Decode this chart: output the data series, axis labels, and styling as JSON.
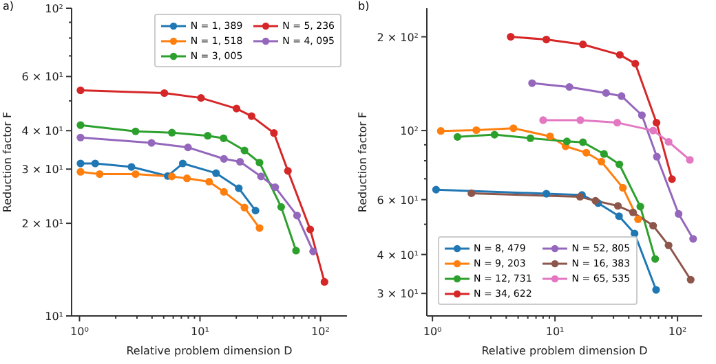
{
  "chart_data": [
    {
      "type": "line",
      "title": "a)",
      "xlabel": "Relative problem dimension D",
      "ylabel": "Reduction factor F",
      "log": "xy",
      "legend": "top right",
      "marker": "circle",
      "line_style": "solid",
      "xlim": [
        0.86,
        166
      ],
      "ylim": [
        10,
        100
      ],
      "xticks": [
        {
          "value": 1,
          "label": "10⁰"
        },
        {
          "value": 2,
          "label": null
        },
        {
          "value": 3,
          "label": null
        },
        {
          "value": 4,
          "label": null
        },
        {
          "value": 5,
          "label": null
        },
        {
          "value": 6,
          "label": null
        },
        {
          "value": 7,
          "label": null
        },
        {
          "value": 8,
          "label": null
        },
        {
          "value": 9,
          "label": null
        },
        {
          "value": 10,
          "label": "10¹"
        },
        {
          "value": 20,
          "label": null
        },
        {
          "value": 30,
          "label": null
        },
        {
          "value": 40,
          "label": null
        },
        {
          "value": 50,
          "label": null
        },
        {
          "value": 60,
          "label": null
        },
        {
          "value": 70,
          "label": null
        },
        {
          "value": 80,
          "label": null
        },
        {
          "value": 90,
          "label": null
        },
        {
          "value": 100,
          "label": "10²"
        }
      ],
      "yticks": [
        {
          "value": 10,
          "label": "10¹"
        },
        {
          "value": 20,
          "label": "2 × 10¹"
        },
        {
          "value": 30,
          "label": "3 × 10¹"
        },
        {
          "value": 40,
          "label": "4 × 10¹"
        },
        {
          "value": 50,
          "label": null
        },
        {
          "value": 60,
          "label": "6 × 10¹"
        },
        {
          "value": 70,
          "label": null
        },
        {
          "value": 80,
          "label": null
        },
        {
          "value": 90,
          "label": null
        },
        {
          "value": 100,
          "label": "10²"
        }
      ],
      "series": [
        {
          "name": "N = 1, 389",
          "color": "#1f77b4",
          "x": [
            1.02,
            1.35,
            2.7,
            5.4,
            7.2,
            13.6,
            21,
            28.9
          ],
          "values": [
            31.3,
            31.3,
            30.5,
            28.5,
            31.3,
            29.1,
            26.0,
            22.0
          ]
        },
        {
          "name": "N = 1, 518",
          "color": "#ff7f0e",
          "x": [
            1.02,
            1.47,
            2.92,
            5.85,
            7.8,
            11.9,
            15.8,
            23.4,
            31.2
          ],
          "values": [
            29.4,
            28.9,
            28.9,
            28.4,
            28.0,
            27.3,
            25.3,
            22.5,
            19.3
          ]
        },
        {
          "name": "N = 3, 005",
          "color": "#2ca02c",
          "x": [
            1.02,
            2.92,
            5.85,
            11.6,
            15.7,
            23.4,
            31.2,
            47.2,
            62.7
          ],
          "values": [
            41.7,
            39.8,
            39.4,
            38.5,
            37.8,
            34.5,
            31.5,
            22.6,
            16.3
          ]
        },
        {
          "name": "N = 5, 236",
          "color": "#d62728",
          "x": [
            1.02,
            5.06,
            10.2,
            20.1,
            26.8,
            41.1,
            53.7,
            82.2,
            108
          ],
          "values": [
            54.1,
            53.0,
            51.1,
            47.2,
            44.6,
            39.3,
            29.6,
            19.1,
            12.9
          ]
        },
        {
          "name": "N = 4, 095",
          "color": "#9467bd",
          "x": [
            1.02,
            3.96,
            7.95,
            15.8,
            21.5,
            32.1,
            42.1,
            63.9,
            87.0
          ],
          "values": [
            38.0,
            36.5,
            35.3,
            32.4,
            31.7,
            28.4,
            26.2,
            21.2,
            16.2
          ]
        }
      ]
    },
    {
      "type": "line",
      "title": "b)",
      "xlabel": "Relative problem dimension D",
      "ylabel": "Reduction factor F",
      "log": "xy",
      "legend": "bottom left",
      "marker": "circle",
      "line_style": "solid",
      "xlim": [
        0.9,
        159
      ],
      "ylim": [
        25.4,
        247
      ],
      "xticks": [
        {
          "value": 1,
          "label": "10⁰"
        },
        {
          "value": 2,
          "label": null
        },
        {
          "value": 3,
          "label": null
        },
        {
          "value": 4,
          "label": null
        },
        {
          "value": 5,
          "label": null
        },
        {
          "value": 6,
          "label": null
        },
        {
          "value": 7,
          "label": null
        },
        {
          "value": 8,
          "label": null
        },
        {
          "value": 9,
          "label": null
        },
        {
          "value": 10,
          "label": "10¹"
        },
        {
          "value": 20,
          "label": null
        },
        {
          "value": 30,
          "label": null
        },
        {
          "value": 40,
          "label": null
        },
        {
          "value": 50,
          "label": null
        },
        {
          "value": 60,
          "label": null
        },
        {
          "value": 70,
          "label": null
        },
        {
          "value": 80,
          "label": null
        },
        {
          "value": 90,
          "label": null
        },
        {
          "value": 100,
          "label": "10²"
        }
      ],
      "yticks": [
        {
          "value": 30,
          "label": "3 × 10¹"
        },
        {
          "value": 40,
          "label": "4 × 10¹"
        },
        {
          "value": 50,
          "label": null
        },
        {
          "value": 60,
          "label": "6 × 10¹"
        },
        {
          "value": 70,
          "label": null
        },
        {
          "value": 80,
          "label": null
        },
        {
          "value": 90,
          "label": null
        },
        {
          "value": 100,
          "label": "10²"
        },
        {
          "value": 200,
          "label": "2 × 10²"
        }
      ],
      "series": [
        {
          "name": "N = 8, 479",
          "color": "#1f77b4",
          "x": [
            1.07,
            8.5,
            16.6,
            22.5,
            33.3,
            44.6,
            66.8
          ],
          "values": [
            64.6,
            62.7,
            62.1,
            58.5,
            53.1,
            46.7,
            30.8
          ]
        },
        {
          "name": "N = 9, 203",
          "color": "#ff7f0e",
          "x": [
            1.17,
            2.28,
            4.58,
            9.1,
            12.2,
            18.0,
            23.9,
            35.8,
            47.6
          ],
          "values": [
            99.7,
            100.3,
            101.7,
            95.8,
            89.0,
            84.9,
            79.5,
            65.5,
            51.9
          ]
        },
        {
          "name": "N = 12, 731",
          "color": "#2ca02c",
          "x": [
            1.6,
            3.21,
            6.3,
            12.5,
            16.9,
            25.1,
            33.5,
            49.7,
            65.7
          ],
          "values": [
            95.4,
            97.0,
            94.5,
            92.3,
            91.7,
            84.1,
            77.9,
            57.0,
            38.7
          ]
        },
        {
          "name": "N = 34, 622",
          "color": "#d62728",
          "x": [
            4.35,
            8.5,
            16.9,
            33.8,
            45.2,
            67.3,
            90.1
          ],
          "values": [
            200,
            196,
            189,
            175,
            164,
            106,
            69.8
          ]
        },
        {
          "name": "N = 52, 805",
          "color": "#9467bd",
          "x": [
            6.5,
            13.1,
            26.1,
            34.9,
            51.2,
            67.8,
            102,
            134
          ],
          "values": [
            142,
            138,
            132,
            129,
            112,
            82.4,
            54.0,
            44.9
          ]
        },
        {
          "name": "N = 16, 383",
          "color": "#8c564b",
          "x": [
            2.08,
            16.0,
            21.4,
            32.6,
            43.3,
            63.2,
            84.5,
            128
          ],
          "values": [
            62.9,
            61.3,
            59.5,
            57.3,
            54.6,
            49.5,
            42.8,
            33.2
          ]
        },
        {
          "name": "N = 65, 535",
          "color": "#e377c2",
          "x": [
            8.0,
            16.1,
            32.2,
            63.2,
            84.5,
            126
          ],
          "values": [
            108,
            108,
            106,
            100,
            92.0,
            80.5
          ]
        }
      ]
    }
  ]
}
